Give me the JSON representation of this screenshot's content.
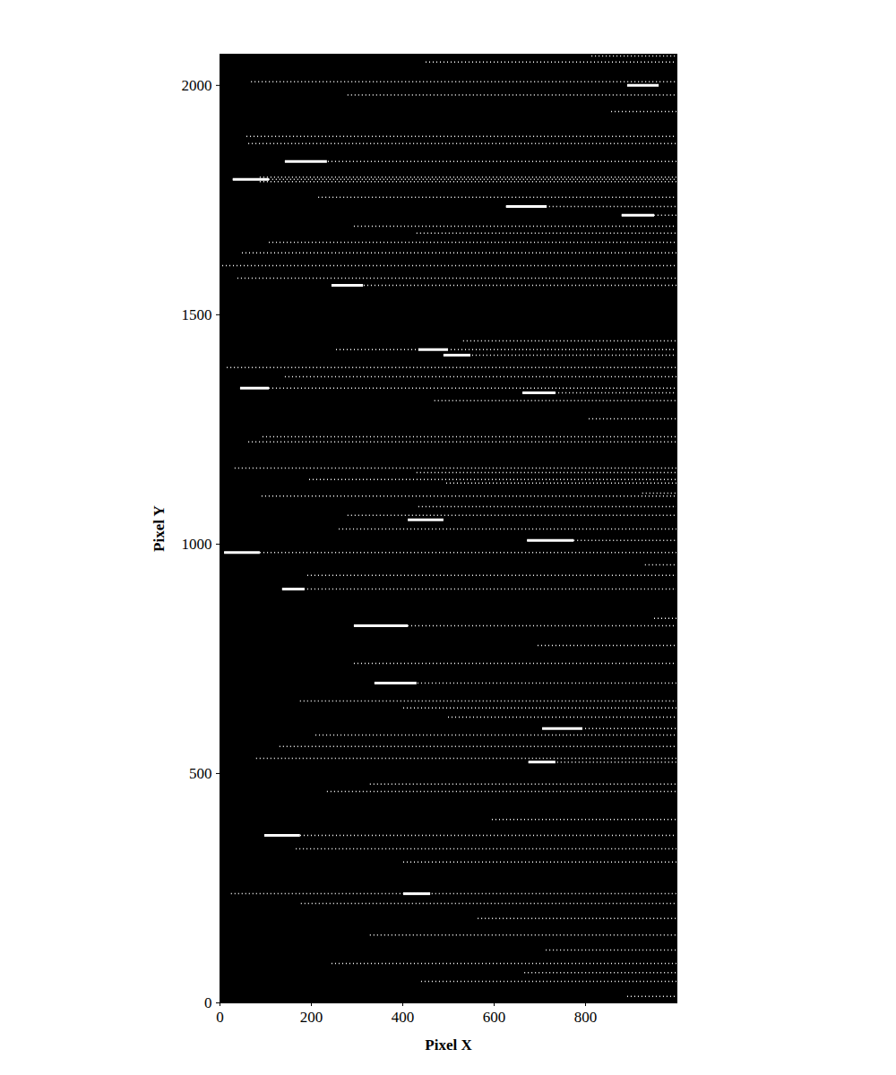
{
  "chart_data": {
    "type": "rule",
    "xlabel": "Pixel X",
    "ylabel": "Pixel Y",
    "xlim": [
      0,
      1000
    ],
    "ylim": [
      0,
      2068
    ],
    "xticks": [
      0,
      200,
      400,
      600,
      800
    ],
    "yticks": [
      0,
      500,
      1000,
      1500,
      2000
    ],
    "grid": false,
    "series": [
      {
        "color": "#ffffff",
        "line_style": "dotted",
        "y": [
          2064,
          2051,
          2008,
          1979,
          1943,
          1889,
          1873,
          1834,
          1800,
          1795,
          1790,
          1756,
          1736,
          1717,
          1693,
          1678,
          1658,
          1635,
          1607,
          1580,
          1564,
          1443,
          1424,
          1412,
          1385,
          1365,
          1340,
          1330,
          1313,
          1273,
          1234,
          1223,
          1166,
          1156,
          1141,
          1133,
          1111,
          1105,
          1082,
          1063,
          1033,
          1008,
          982,
          955,
          932,
          902,
          838,
          822,
          779,
          740,
          697,
          658,
          643,
          623,
          598,
          584,
          559,
          533,
          525,
          477,
          461,
          400,
          365,
          336,
          307,
          238,
          217,
          184,
          148,
          115,
          86,
          66,
          47,
          14
        ],
        "x_start": [
          814,
          451,
          69,
          280,
          857,
          59,
          63,
          143,
          88,
          29,
          88,
          216,
          627,
          880,
          294,
          431,
          108,
          49,
          6,
          39,
          245,
          533,
          255,
          490,
          16,
          143,
          45,
          663,
          470,
          808,
          94,
          63,
          33,
          431,
          196,
          496,
          925,
          92,
          435,
          280,
          261,
          673,
          10,
          931,
          192,
          137,
          951,
          294,
          696,
          294,
          339,
          176,
          402,
          500,
          706,
          210,
          131,
          80,
          676,
          329,
          235,
          596,
          98,
          167,
          402,
          25,
          178,
          565,
          329,
          714,
          245,
          667,
          441,
          892
        ],
        "x_end": [
          1000,
          1000,
          1000,
          1000,
          1000,
          1000,
          1000,
          1000,
          1000,
          1000,
          1000,
          1000,
          1000,
          1000,
          1000,
          1000,
          1000,
          1000,
          1000,
          1000,
          1000,
          1000,
          1000,
          1000,
          1000,
          1000,
          1000,
          1000,
          1000,
          1000,
          1000,
          1000,
          1000,
          1000,
          1000,
          1000,
          1000,
          1000,
          1000,
          1000,
          1000,
          1000,
          1000,
          1000,
          1000,
          1000,
          1000,
          1000,
          1000,
          1000,
          1000,
          1000,
          1000,
          1000,
          1000,
          1000,
          1000,
          1000,
          1000,
          1000,
          1000,
          1000,
          1000,
          1000,
          1000,
          1000,
          1000,
          1000,
          1000,
          1000,
          1000,
          1000,
          1000,
          1000
        ]
      },
      {
        "color": "#ffffff",
        "line_style": "solid",
        "y": [
          2000,
          1834,
          1795,
          1736,
          1717,
          1564,
          1424,
          1412,
          1340,
          1330,
          1053,
          1008,
          982,
          902,
          822,
          697,
          598,
          525,
          365,
          238
        ],
        "x_start": [
          892,
          143,
          29,
          627,
          880,
          245,
          435,
          490,
          45,
          663,
          412,
          673,
          10,
          137,
          294,
          339,
          706,
          676,
          98,
          402
        ],
        "x_end": [
          961,
          235,
          108,
          716,
          951,
          314,
          500,
          549,
          108,
          735,
          490,
          775,
          88,
          186,
          412,
          431,
          794,
          735,
          176,
          461
        ]
      }
    ]
  }
}
